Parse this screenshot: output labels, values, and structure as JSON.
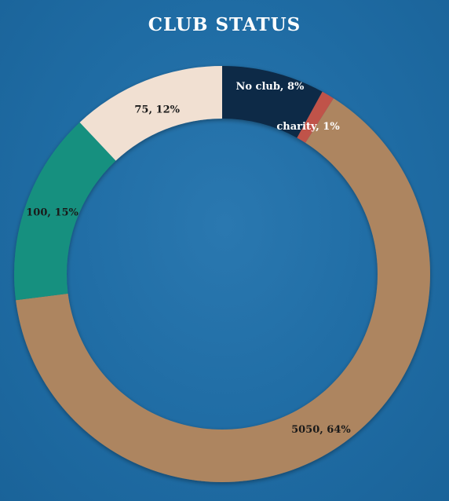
{
  "chart_data": {
    "type": "pie",
    "title": "CLUB STATUS",
    "slices": [
      {
        "name": "No club",
        "value": 8,
        "label": "No club, 8%",
        "color": "#0d2b47",
        "label_color": "#ffffff"
      },
      {
        "name": "charity",
        "value": 1,
        "label": "charity, 1%",
        "color": "#c0524a",
        "label_color": "#ffffff"
      },
      {
        "name": "5050",
        "value": 64,
        "label": "5050, 64%",
        "color": "#ad8560",
        "label_color": "#1a1a1a"
      },
      {
        "name": "100",
        "value": 15,
        "label": "100, 15%",
        "color": "#16907f",
        "label_color": "#1a1a1a"
      },
      {
        "name": "75",
        "value": 12,
        "label": "75, 12%",
        "color": "#f1e0d2",
        "label_color": "#1a1a1a"
      }
    ],
    "donut": true,
    "legend": "none"
  }
}
